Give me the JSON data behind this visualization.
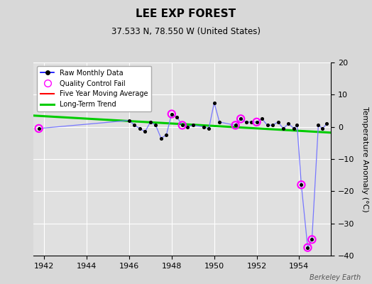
{
  "title": "LEE EXP FOREST",
  "subtitle": "37.533 N, 78.550 W (United States)",
  "ylabel": "Temperature Anomaly (°C)",
  "credit": "Berkeley Earth",
  "xlim": [
    1941.5,
    1955.5
  ],
  "ylim": [
    -40,
    20
  ],
  "yticks": [
    -40,
    -30,
    -20,
    -10,
    0,
    10,
    20
  ],
  "xticks": [
    1942,
    1944,
    1946,
    1948,
    1950,
    1952,
    1954
  ],
  "raw_x": [
    1941.75,
    1946.0,
    1946.25,
    1946.5,
    1946.75,
    1947.0,
    1947.25,
    1947.5,
    1947.75,
    1948.0,
    1948.25,
    1948.5,
    1948.75,
    1949.0,
    1949.5,
    1949.75,
    1950.0,
    1950.25,
    1951.0,
    1951.25,
    1951.5,
    1951.75,
    1952.0,
    1952.25,
    1952.5,
    1952.75,
    1953.0,
    1953.25,
    1953.5,
    1953.75,
    1953.9,
    1954.1,
    1954.4,
    1954.6,
    1954.9,
    1955.1,
    1955.3
  ],
  "raw_y": [
    -0.5,
    2.0,
    0.5,
    -0.5,
    -1.5,
    1.5,
    0.5,
    -3.5,
    -2.5,
    4.0,
    3.0,
    0.5,
    0.0,
    0.5,
    0.0,
    -0.5,
    7.5,
    1.5,
    0.5,
    2.5,
    1.5,
    1.5,
    1.5,
    2.5,
    0.5,
    0.5,
    1.5,
    -0.5,
    1.0,
    -0.5,
    0.5,
    -18.0,
    -37.5,
    -35.0,
    0.5,
    -0.5,
    1.0
  ],
  "qc_x": [
    1941.75,
    1948.0,
    1948.5,
    1951.0,
    1951.25,
    1952.0,
    1954.1,
    1954.4,
    1954.6
  ],
  "qc_y": [
    -0.5,
    4.0,
    0.5,
    0.5,
    2.5,
    1.5,
    -18.0,
    -37.5,
    -35.0
  ],
  "trend_x": [
    1941.5,
    1955.5
  ],
  "trend_y": [
    3.5,
    -1.8
  ],
  "line_color": "#7777ff",
  "dot_color": "#000000",
  "qc_color": "magenta",
  "trend_color": "#00cc00",
  "bg_color": "#d8d8d8",
  "plot_bg": "#e0e0e0",
  "grid_color": "#ffffff"
}
